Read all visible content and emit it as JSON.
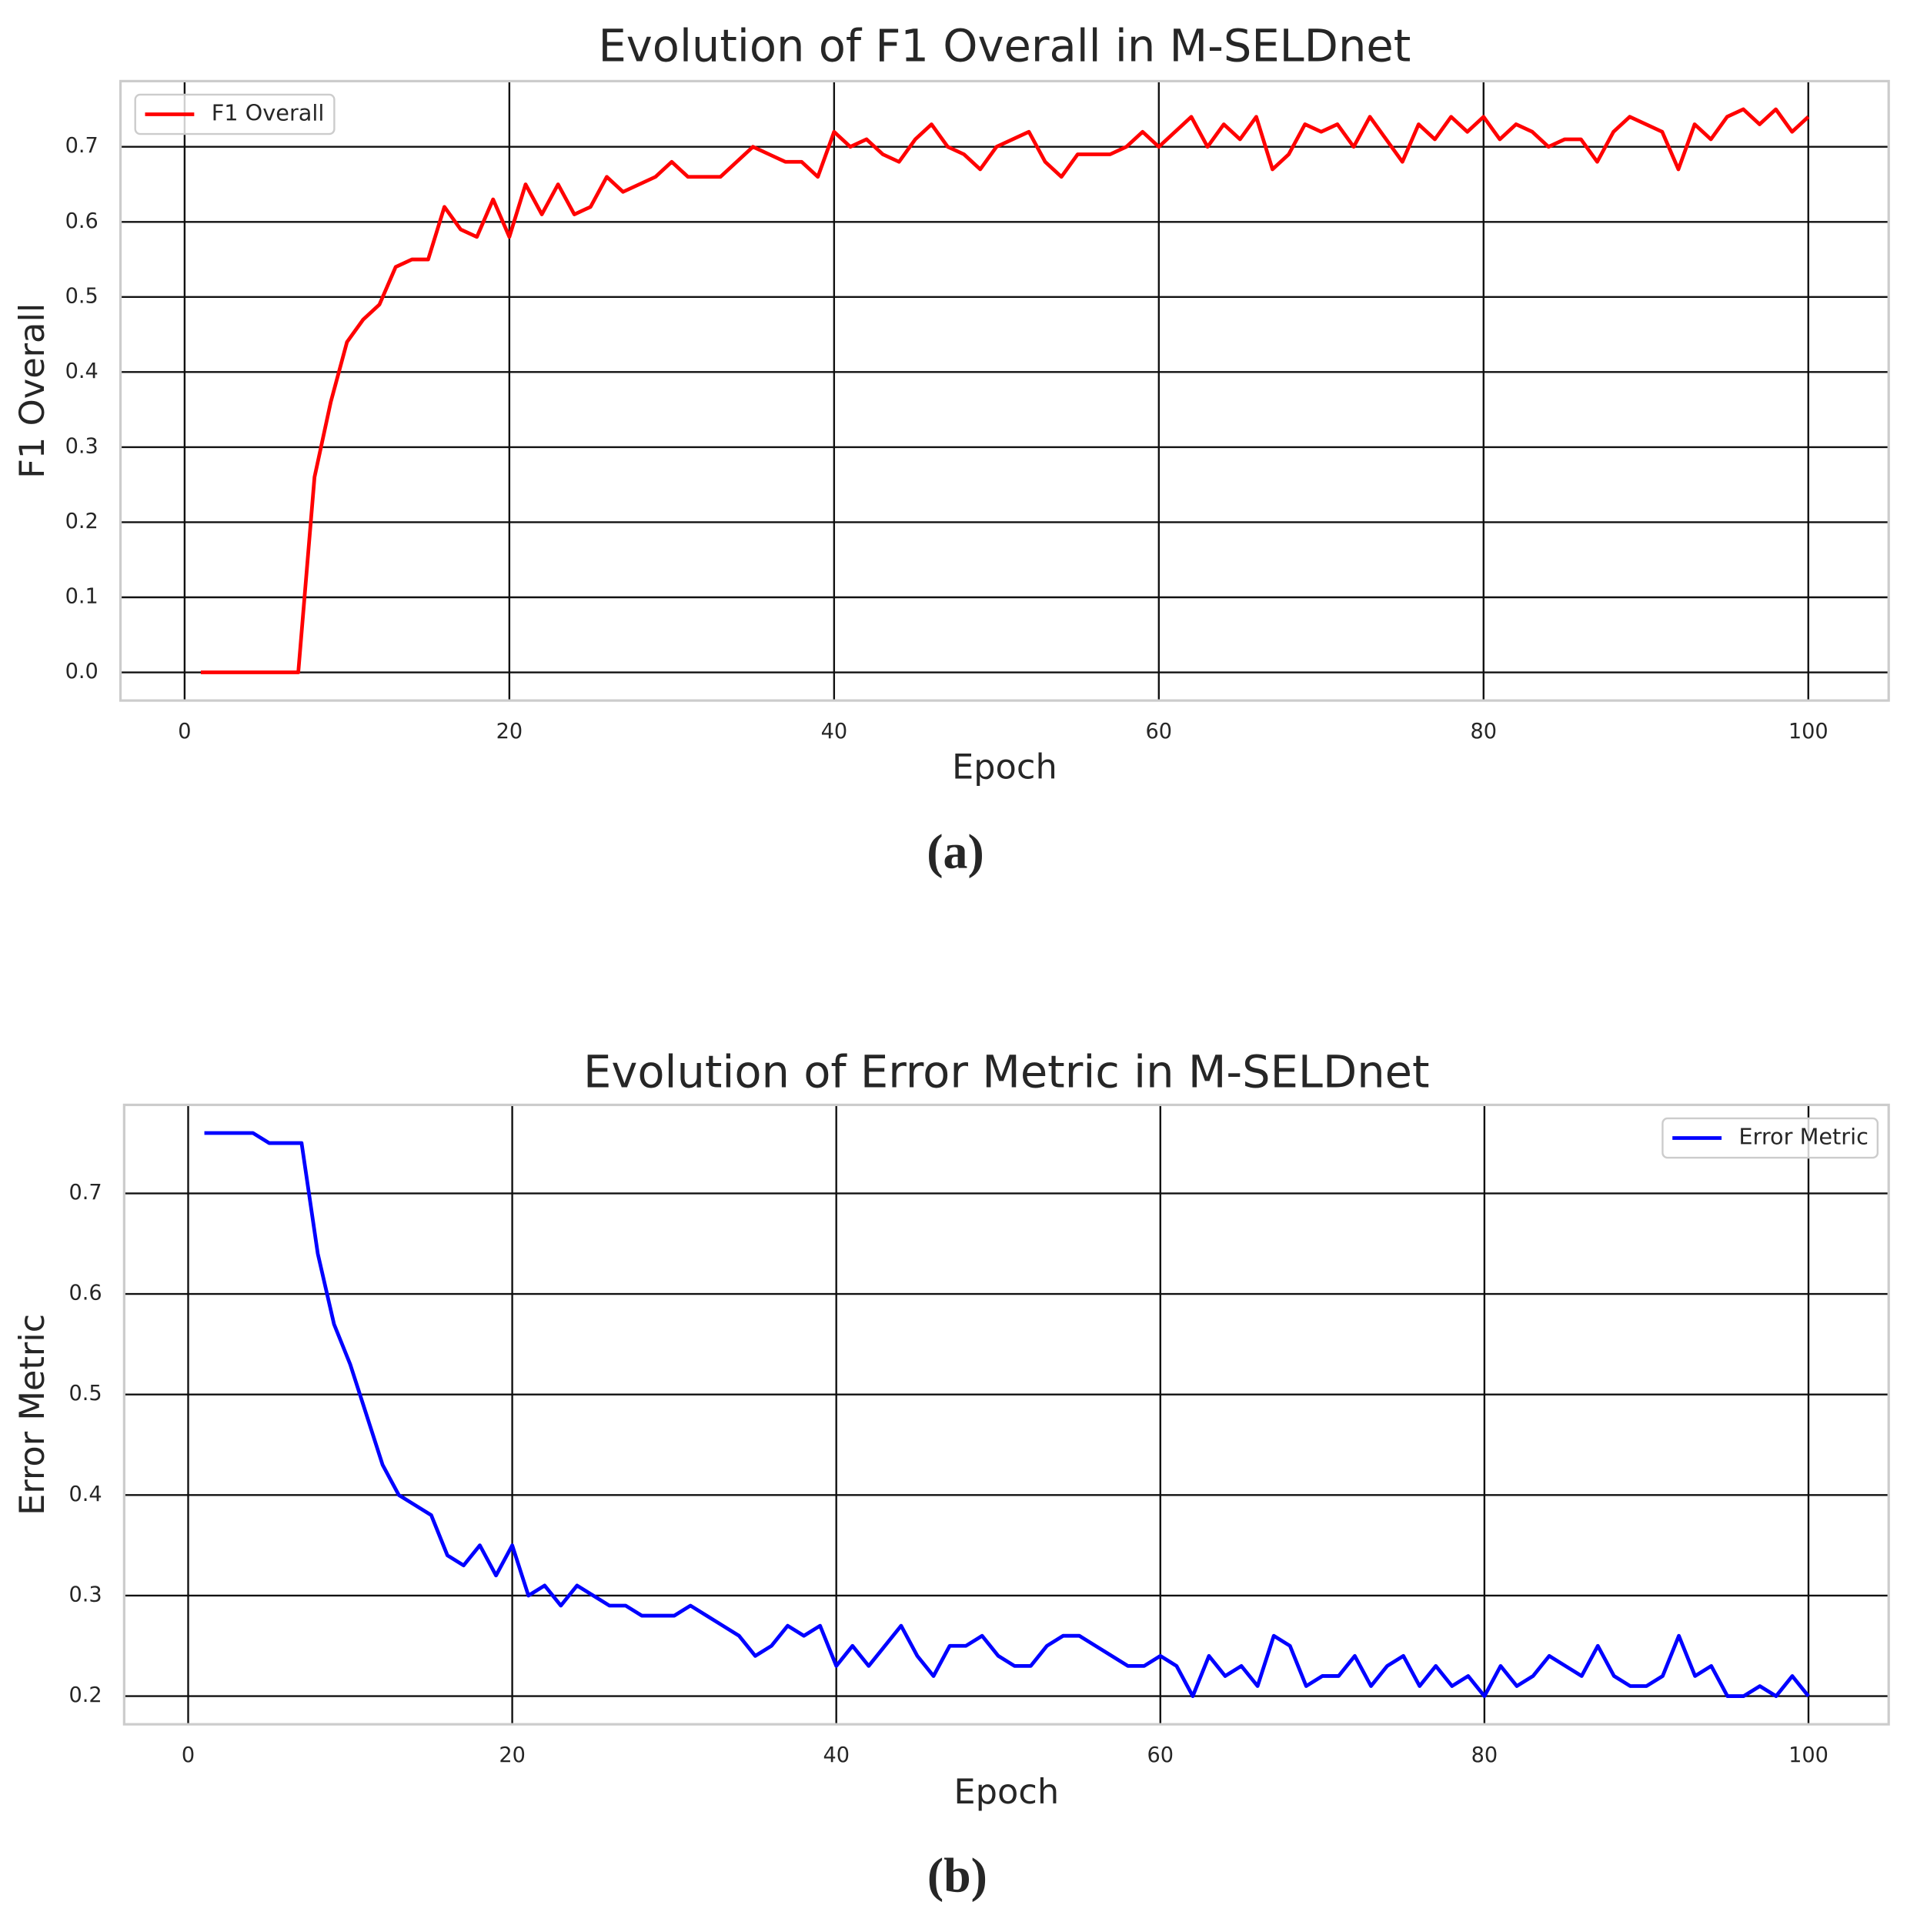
{
  "chart_data": [
    {
      "type": "line",
      "title": "Evolution of F1 Overall in M-SELDnet",
      "xlabel": "Epoch",
      "ylabel": "F1 Overall",
      "caption": "(a)",
      "x": [
        1,
        2,
        3,
        4,
        5,
        6,
        7,
        8,
        9,
        10,
        11,
        12,
        13,
        14,
        15,
        16,
        17,
        18,
        19,
        20,
        21,
        22,
        23,
        24,
        25,
        26,
        27,
        28,
        29,
        30,
        31,
        32,
        33,
        34,
        35,
        36,
        37,
        38,
        39,
        40,
        41,
        42,
        43,
        44,
        45,
        46,
        47,
        48,
        49,
        50,
        51,
        52,
        53,
        54,
        55,
        56,
        57,
        58,
        59,
        60,
        61,
        62,
        63,
        64,
        65,
        66,
        67,
        68,
        69,
        70,
        71,
        72,
        73,
        74,
        75,
        76,
        77,
        78,
        79,
        80,
        81,
        82,
        83,
        84,
        85,
        86,
        87,
        88,
        89,
        90,
        91,
        92,
        93,
        94,
        95,
        96,
        97,
        98,
        99,
        100
      ],
      "series": [
        {
          "name": "F1 Overall",
          "color": "#ff0000",
          "values": [
            0,
            0,
            0,
            0,
            0,
            0,
            0,
            0.26,
            0.36,
            0.44,
            0.47,
            0.49,
            0.54,
            0.55,
            0.55,
            0.62,
            0.59,
            0.58,
            0.63,
            0.58,
            0.65,
            0.61,
            0.65,
            0.61,
            0.62,
            0.66,
            0.64,
            0.65,
            0.66,
            0.68,
            0.66,
            0.66,
            0.66,
            0.68,
            0.7,
            0.69,
            0.68,
            0.68,
            0.66,
            0.72,
            0.7,
            0.71,
            0.69,
            0.68,
            0.71,
            0.73,
            0.7,
            0.69,
            0.67,
            0.7,
            0.71,
            0.72,
            0.68,
            0.66,
            0.69,
            0.69,
            0.69,
            0.7,
            0.72,
            0.7,
            0.72,
            0.74,
            0.7,
            0.73,
            0.71,
            0.74,
            0.67,
            0.69,
            0.73,
            0.72,
            0.73,
            0.7,
            0.74,
            0.71,
            0.68,
            0.73,
            0.71,
            0.74,
            0.72,
            0.74,
            0.71,
            0.73,
            0.72,
            0.7,
            0.71,
            0.71,
            0.68,
            0.72,
            0.74,
            0.73,
            0.72,
            0.67,
            0.73,
            0.71,
            0.74,
            0.75,
            0.73,
            0.75,
            0.72,
            0.74
          ]
        }
      ],
      "xlim": [
        -3.95,
        104.95
      ],
      "ylim": [
        -0.0375,
        0.7875
      ],
      "xticks": [
        0,
        20,
        40,
        60,
        80,
        100
      ],
      "yticks": [
        {
          "value": 0,
          "label": "0.0"
        },
        0.1,
        0.2,
        0.3,
        0.4,
        0.5,
        0.6,
        0.7
      ],
      "grid": true,
      "legend": "upper left"
    },
    {
      "type": "line",
      "title": "Evolution of Error Metric in M-SELDnet",
      "xlabel": "Epoch",
      "ylabel": "Error Metric",
      "caption": "(b)",
      "x": [
        1,
        2,
        3,
        4,
        5,
        6,
        7,
        8,
        9,
        10,
        11,
        12,
        13,
        14,
        15,
        16,
        17,
        18,
        19,
        20,
        21,
        22,
        23,
        24,
        25,
        26,
        27,
        28,
        29,
        30,
        31,
        32,
        33,
        34,
        35,
        36,
        37,
        38,
        39,
        40,
        41,
        42,
        43,
        44,
        45,
        46,
        47,
        48,
        49,
        50,
        51,
        52,
        53,
        54,
        55,
        56,
        57,
        58,
        59,
        60,
        61,
        62,
        63,
        64,
        65,
        66,
        67,
        68,
        69,
        70,
        71,
        72,
        73,
        74,
        75,
        76,
        77,
        78,
        79,
        80,
        81,
        82,
        83,
        84,
        85,
        86,
        87,
        88,
        89,
        90,
        91,
        92,
        93,
        94,
        95,
        96,
        97,
        98,
        99,
        100
      ],
      "series": [
        {
          "name": "Error Metric",
          "color": "#0000ff",
          "values": [
            0.76,
            0.76,
            0.76,
            0.76,
            0.75,
            0.75,
            0.75,
            0.64,
            0.57,
            0.53,
            0.48,
            0.43,
            0.4,
            0.39,
            0.38,
            0.34,
            0.33,
            0.35,
            0.32,
            0.35,
            0.3,
            0.31,
            0.29,
            0.31,
            0.3,
            0.29,
            0.29,
            0.28,
            0.28,
            0.28,
            0.29,
            0.28,
            0.27,
            0.26,
            0.24,
            0.25,
            0.27,
            0.26,
            0.27,
            0.23,
            0.25,
            0.23,
            0.25,
            0.27,
            0.24,
            0.22,
            0.25,
            0.25,
            0.26,
            0.24,
            0.23,
            0.23,
            0.25,
            0.26,
            0.26,
            0.25,
            0.24,
            0.23,
            0.23,
            0.24,
            0.23,
            0.2,
            0.24,
            0.22,
            0.23,
            0.21,
            0.26,
            0.25,
            0.21,
            0.22,
            0.22,
            0.24,
            0.21,
            0.23,
            0.24,
            0.21,
            0.23,
            0.21,
            0.22,
            0.2,
            0.23,
            0.21,
            0.22,
            0.24,
            0.23,
            0.22,
            0.25,
            0.22,
            0.21,
            0.21,
            0.22,
            0.26,
            0.22,
            0.23,
            0.2,
            0.2,
            0.21,
            0.2,
            0.22,
            0.2
          ]
        }
      ],
      "xlim": [
        -3.95,
        104.95
      ],
      "ylim": [
        0.172,
        0.788
      ],
      "xticks": [
        0,
        20,
        40,
        60,
        80,
        100
      ],
      "yticks": [
        0.2,
        0.3,
        0.4,
        0.5,
        0.6,
        0.7
      ],
      "grid": true,
      "legend": "upper right"
    }
  ]
}
